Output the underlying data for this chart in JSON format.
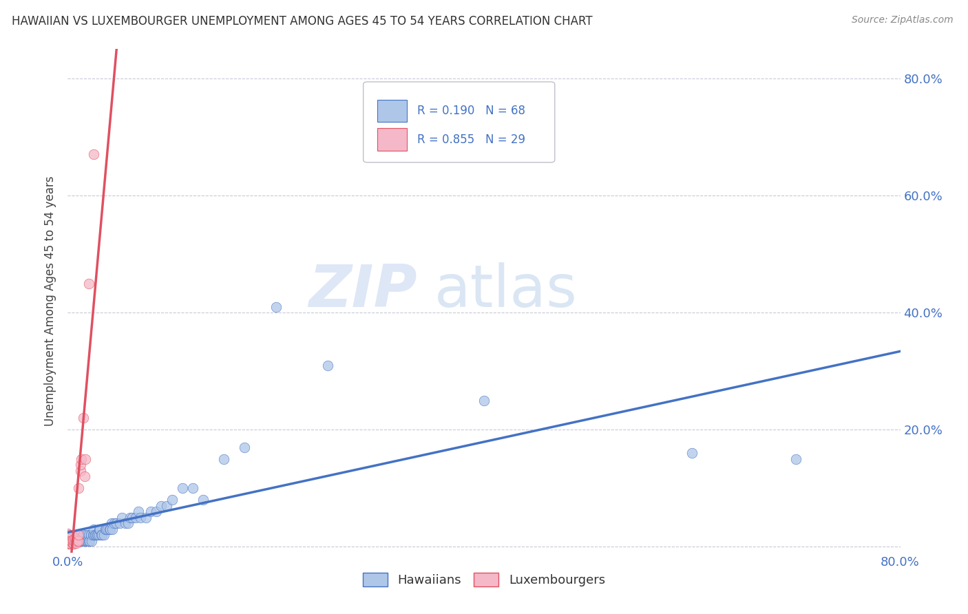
{
  "title": "HAWAIIAN VS LUXEMBOURGER UNEMPLOYMENT AMONG AGES 45 TO 54 YEARS CORRELATION CHART",
  "source": "Source: ZipAtlas.com",
  "ylabel": "Unemployment Among Ages 45 to 54 years",
  "xlim": [
    0,
    0.8
  ],
  "ylim": [
    -0.01,
    0.85
  ],
  "ytick_positions": [
    0.0,
    0.2,
    0.4,
    0.6,
    0.8
  ],
  "yticklabels_right": [
    "",
    "20.0%",
    "40.0%",
    "60.0%",
    "80.0%"
  ],
  "hawaiian_R": 0.19,
  "hawaiian_N": 68,
  "luxembourger_R": 0.855,
  "luxembourger_N": 29,
  "hawaiian_color": "#aec6e8",
  "luxembourger_color": "#f5b8c8",
  "hawaiian_line_color": "#4472c4",
  "luxembourger_line_color": "#e05060",
  "grid_color": "#c8c8d8",
  "watermark_zip": "ZIP",
  "watermark_atlas": "atlas",
  "hawaiian_x": [
    0.0,
    0.005,
    0.008,
    0.01,
    0.01,
    0.01,
    0.012,
    0.013,
    0.015,
    0.015,
    0.016,
    0.017,
    0.018,
    0.018,
    0.019,
    0.02,
    0.02,
    0.021,
    0.022,
    0.022,
    0.023,
    0.024,
    0.025,
    0.025,
    0.026,
    0.027,
    0.028,
    0.029,
    0.03,
    0.03,
    0.031,
    0.032,
    0.033,
    0.035,
    0.036,
    0.037,
    0.038,
    0.04,
    0.041,
    0.042,
    0.043,
    0.045,
    0.047,
    0.05,
    0.052,
    0.055,
    0.058,
    0.06,
    0.062,
    0.065,
    0.068,
    0.07,
    0.075,
    0.08,
    0.085,
    0.09,
    0.095,
    0.1,
    0.11,
    0.12,
    0.13,
    0.15,
    0.17,
    0.2,
    0.25,
    0.4,
    0.6,
    0.7
  ],
  "hawaiian_y": [
    0.02,
    0.01,
    0.01,
    0.01,
    0.02,
    0.02,
    0.01,
    0.01,
    0.01,
    0.02,
    0.01,
    0.01,
    0.01,
    0.02,
    0.01,
    0.01,
    0.02,
    0.01,
    0.02,
    0.02,
    0.01,
    0.02,
    0.02,
    0.03,
    0.02,
    0.02,
    0.02,
    0.02,
    0.02,
    0.03,
    0.03,
    0.02,
    0.02,
    0.02,
    0.03,
    0.03,
    0.03,
    0.03,
    0.03,
    0.04,
    0.03,
    0.04,
    0.04,
    0.04,
    0.05,
    0.04,
    0.04,
    0.05,
    0.05,
    0.05,
    0.06,
    0.05,
    0.05,
    0.06,
    0.06,
    0.07,
    0.07,
    0.08,
    0.1,
    0.1,
    0.08,
    0.15,
    0.17,
    0.41,
    0.31,
    0.25,
    0.16,
    0.15
  ],
  "luxembourger_x": [
    0.0,
    0.0,
    0.001,
    0.001,
    0.002,
    0.002,
    0.003,
    0.003,
    0.004,
    0.005,
    0.005,
    0.006,
    0.006,
    0.007,
    0.007,
    0.008,
    0.008,
    0.009,
    0.01,
    0.01,
    0.01,
    0.012,
    0.012,
    0.013,
    0.015,
    0.016,
    0.017,
    0.02,
    0.025
  ],
  "luxembourger_y": [
    0.005,
    0.023,
    0.005,
    0.02,
    0.005,
    0.01,
    0.005,
    0.01,
    0.008,
    0.005,
    0.012,
    0.005,
    0.01,
    0.008,
    0.015,
    0.006,
    0.012,
    0.01,
    0.01,
    0.02,
    0.1,
    0.13,
    0.14,
    0.15,
    0.22,
    0.12,
    0.15,
    0.45,
    0.67
  ]
}
